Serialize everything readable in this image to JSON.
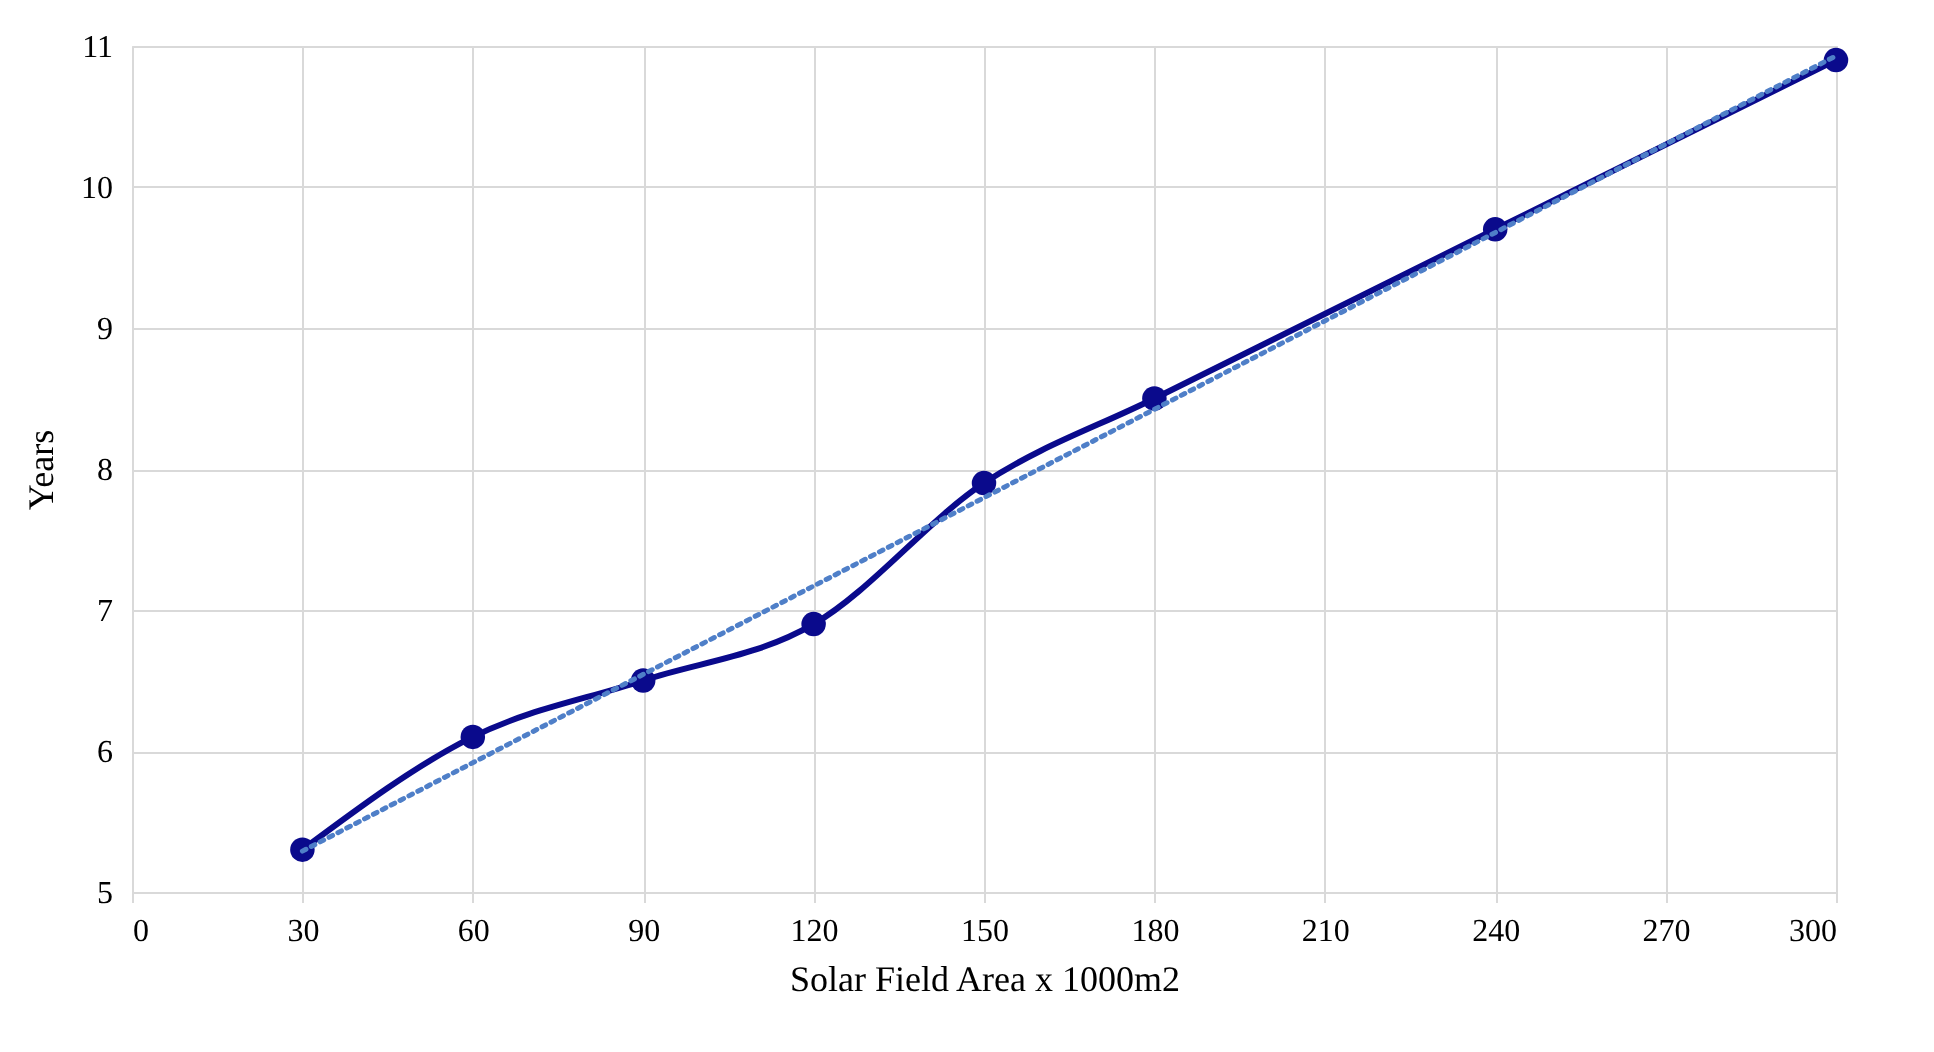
{
  "chart_data": {
    "type": "line",
    "xlabel": "Solar Field Area x 1000m2",
    "ylabel": "Years",
    "x": [
      30,
      60,
      90,
      120,
      150,
      180,
      240,
      300
    ],
    "series": [
      {
        "color": "#0a0a8c",
        "values": [
          5.3,
          6.1,
          6.5,
          6.9,
          7.9,
          8.5,
          9.7,
          10.9
        ],
        "marker": "circle",
        "line_style": "solid"
      },
      {
        "type": "line",
        "x": [
          30,
          300
        ],
        "color": "#4f7fc8",
        "values": [
          5.29,
          10.93
        ],
        "marker": "none",
        "line_style": "dotted"
      }
    ],
    "xlim": [
      0,
      300
    ],
    "xticks": [
      0,
      30,
      60,
      90,
      120,
      150,
      180,
      210,
      240,
      270,
      300
    ],
    "ylim": [
      5,
      11
    ],
    "yticks": [
      5,
      6,
      7,
      8,
      9,
      10,
      11
    ],
    "grid": true
  }
}
